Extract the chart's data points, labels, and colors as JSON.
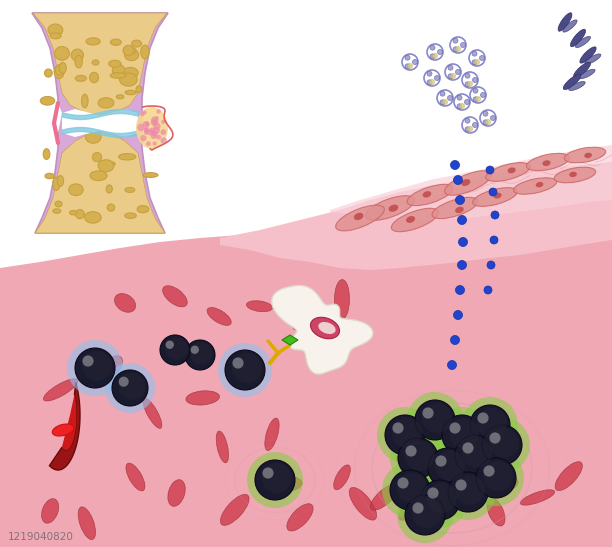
{
  "bg_color": "#ffffff",
  "tissue_main": "#f0a8b5",
  "tissue_light": "#f5c0ca",
  "tissue_synovial": "#f8d0d8",
  "bone_fill": "#eacc88",
  "bone_pore": "#c8a040",
  "bone_pore_fill": "#d4b050",
  "capsule_fill": "#d8a8d8",
  "cartilage_blue": "#80c8e0",
  "inflam_yellow": "#f5d890",
  "inflam_pink": "#f0a8b8",
  "vessel_red": "#cc1818",
  "vessel_dark": "#881010",
  "vessel_curve": "#dd2222",
  "lymph_dark": "#181828",
  "lymph_blue_ring": "#90c0ee",
  "lymph_green_ring": "#88cc44",
  "lymph_grey_ring": "#aaaacc",
  "cell_red": "#cc3344",
  "cell_dark_red": "#993333",
  "macrophage_fill": "#f5f0e8",
  "macrophage_inner": "#cc4466",
  "antibody_yellow": "#ddaa00",
  "antibody_green": "#44bb22",
  "blue_dot": "#2244cc",
  "cytokine_purple": "#5555aa",
  "fibroblast_dark": "#cc7788",
  "wave_light": "#fce8ec"
}
